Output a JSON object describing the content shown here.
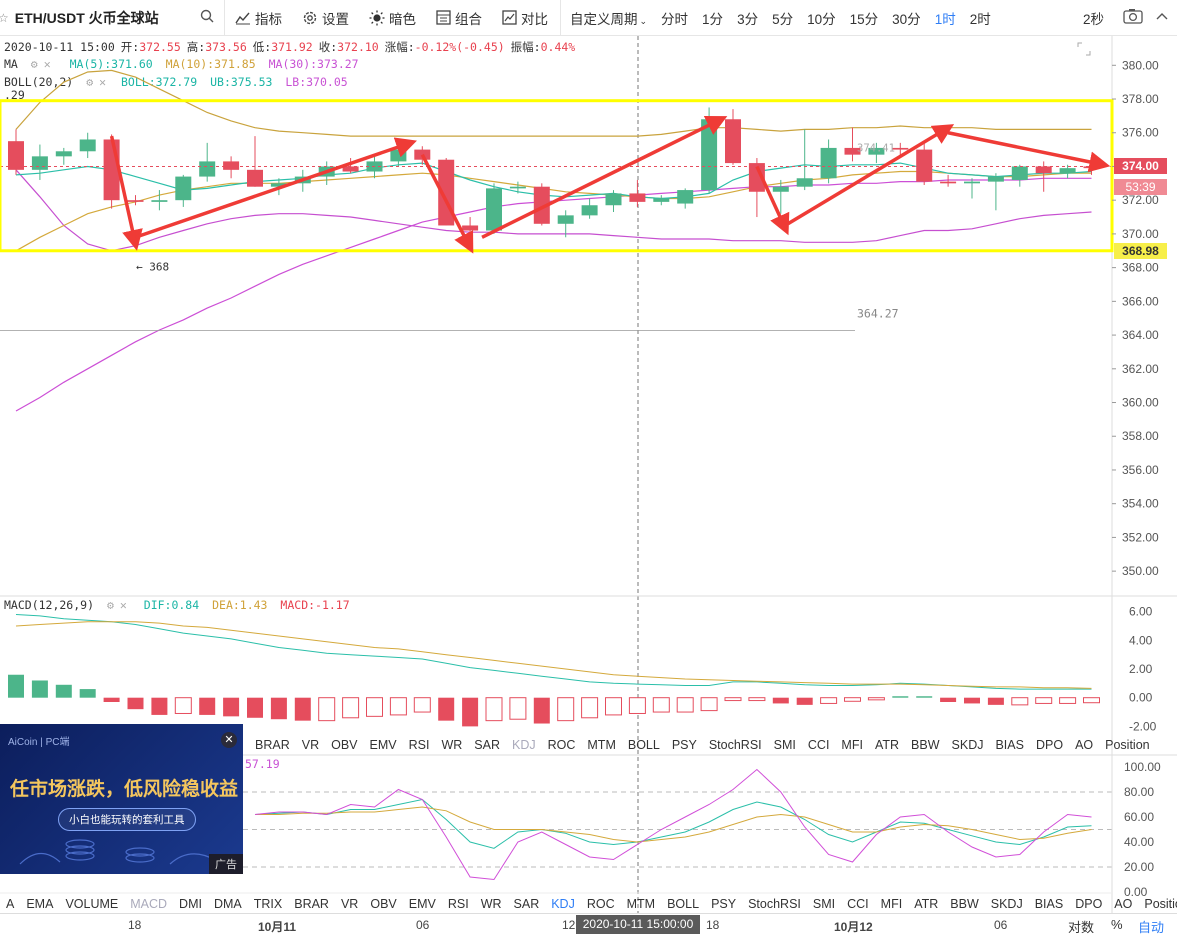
{
  "toolbar": {
    "symbol": "ETH/USDT 火币全球站",
    "buttons": [
      {
        "label": "指标",
        "icon": "indicator-icon"
      },
      {
        "label": "设置",
        "icon": "gear-icon"
      },
      {
        "label": "暗色",
        "icon": "sun-icon"
      },
      {
        "label": "组合",
        "icon": "combo-icon"
      },
      {
        "label": "对比",
        "icon": "compare-icon"
      }
    ],
    "custom_period": "自定义周期",
    "periods": [
      "分时",
      "1分",
      "3分",
      "5分",
      "10分",
      "15分",
      "30分",
      "1时",
      "2时"
    ],
    "active_period": "1时",
    "right_label": "2秒"
  },
  "info": {
    "line1": {
      "time": "2020-10-11 15:00",
      "open_label": "开:",
      "open": "372.55",
      "high_label": "高:",
      "high": "373.56",
      "low_label": "低:",
      "low": "371.92",
      "close_label": "收:",
      "close": "372.10",
      "change_label": "涨幅:",
      "change": "-0.12%(-0.45)",
      "amp_label": "振幅:",
      "amp": "0.44%"
    },
    "ma": {
      "name": "MA",
      "ma5": "MA(5):371.60",
      "ma10": "MA(10):371.85",
      "ma30": "MA(30):373.27"
    },
    "boll": {
      "name": "BOLL(20,2)",
      "boll": "BOLL:372.79",
      "ub": "UB:375.53",
      "lb": "LB:370.05",
      "extra": ".29"
    },
    "macd": {
      "name": "MACD(12,26,9)",
      "dif": "DIF:0.84",
      "dea": "DEA:1.43",
      "macd": "MACD:-1.17"
    },
    "kdj_j": "57.19"
  },
  "price_axis": {
    "ticks": [
      "380.00",
      "378.00",
      "376.00",
      "374.00",
      "372.00",
      "370.00",
      "368.00",
      "366.00",
      "364.00",
      "362.00",
      "360.00",
      "358.00",
      "356.00",
      "354.00",
      "352.00",
      "350.00"
    ],
    "current_price": "374.00",
    "countdown": "53:39",
    "yellow_label": "368.98"
  },
  "annotations": {
    "low_marker": "← 368",
    "hline_label": "364.27",
    "faint_label": "374.41"
  },
  "macd_axis": {
    "ticks": [
      "6.00",
      "4.00",
      "2.00",
      "0.00",
      "-2.00"
    ]
  },
  "kdj_axis": {
    "ticks": [
      "100.00",
      "80.00",
      "60.00",
      "40.00",
      "20.00",
      "0.00"
    ]
  },
  "indicator_tabs_1": [
    "BRAR",
    "VR",
    "OBV",
    "EMV",
    "RSI",
    "WR",
    "SAR",
    "KDJ",
    "ROC",
    "MTM",
    "BOLL",
    "PSY",
    "StochRSI",
    "SMI",
    "CCI",
    "MFI",
    "ATR",
    "BBW",
    "SKDJ",
    "BIAS",
    "DPO",
    "AO",
    "Position"
  ],
  "indicator_tabs_2": [
    "A",
    "EMA",
    "VOLUME",
    "MACD",
    "DMI",
    "DMA",
    "TRIX",
    "BRAR",
    "VR",
    "OBV",
    "EMV",
    "RSI",
    "WR",
    "SAR",
    "KDJ",
    "ROC",
    "MTM",
    "BOLL",
    "PSY",
    "StochRSI",
    "SMI",
    "CCI",
    "MFI",
    "ATR",
    "BBW",
    "SKDJ",
    "BIAS",
    "DPO",
    "AO",
    "Position"
  ],
  "time_axis": {
    "labels": [
      "18",
      "10月11",
      "06",
      "12",
      "18",
      "10月12",
      "06"
    ],
    "crosshair": "2020-10-11 15:00:00"
  },
  "bottom_right": {
    "log": "对数",
    "pct": "%",
    "auto": "自动"
  },
  "ad": {
    "brand": "AiCoin | PC端",
    "headline": "任市场涨跌，低风险稳收益",
    "sub": "小白也能玩转的套利工具",
    "tag": "广告",
    "close": "✕"
  },
  "colors": {
    "up": "#4cb58a",
    "down": "#e54d5d",
    "ma5": "#2bbfa9",
    "ma10": "#d4a93c",
    "ma30": "#cc4fd6",
    "box": "#ffff00",
    "arrow": "#ef3b36",
    "accent": "#2f7ef5"
  },
  "chart_data": [
    {
      "type": "candlestick",
      "title": "ETH/USDT 1h",
      "ylim": [
        349,
        381.5
      ],
      "candles": [
        {
          "o": 375.5,
          "h": 376.2,
          "l": 373.5,
          "c": 373.8
        },
        {
          "o": 373.8,
          "h": 375.3,
          "l": 373.2,
          "c": 374.6
        },
        {
          "o": 374.6,
          "h": 375.1,
          "l": 374.1,
          "c": 374.9
        },
        {
          "o": 374.9,
          "h": 376.0,
          "l": 374.5,
          "c": 375.6
        },
        {
          "o": 375.6,
          "h": 375.9,
          "l": 371.5,
          "c": 372.0
        },
        {
          "o": 372.0,
          "h": 372.3,
          "l": 371.7,
          "c": 371.9
        },
        {
          "o": 371.9,
          "h": 372.6,
          "l": 371.4,
          "c": 372.0
        },
        {
          "o": 372.0,
          "h": 373.5,
          "l": 371.6,
          "c": 373.4
        },
        {
          "o": 373.4,
          "h": 375.4,
          "l": 373.1,
          "c": 374.3
        },
        {
          "o": 374.3,
          "h": 374.6,
          "l": 373.3,
          "c": 373.8
        },
        {
          "o": 373.8,
          "h": 375.8,
          "l": 372.8,
          "c": 372.8
        },
        {
          "o": 372.8,
          "h": 373.3,
          "l": 372.3,
          "c": 373.0
        },
        {
          "o": 373.0,
          "h": 373.8,
          "l": 372.5,
          "c": 373.4
        },
        {
          "o": 373.4,
          "h": 374.3,
          "l": 372.9,
          "c": 374.0
        },
        {
          "o": 374.0,
          "h": 374.5,
          "l": 373.6,
          "c": 373.7
        },
        {
          "o": 373.7,
          "h": 374.6,
          "l": 373.3,
          "c": 374.3
        },
        {
          "o": 374.3,
          "h": 375.2,
          "l": 374.0,
          "c": 375.0
        },
        {
          "o": 375.0,
          "h": 375.2,
          "l": 374.1,
          "c": 374.4
        },
        {
          "o": 374.4,
          "h": 374.5,
          "l": 370.5,
          "c": 370.5
        },
        {
          "o": 370.5,
          "h": 371.0,
          "l": 369.9,
          "c": 370.2
        },
        {
          "o": 370.2,
          "h": 373.0,
          "l": 370.0,
          "c": 372.7
        },
        {
          "o": 372.7,
          "h": 373.1,
          "l": 372.4,
          "c": 372.8
        },
        {
          "o": 372.8,
          "h": 373.0,
          "l": 370.5,
          "c": 370.6
        },
        {
          "o": 370.6,
          "h": 371.4,
          "l": 369.8,
          "c": 371.1
        },
        {
          "o": 371.1,
          "h": 372.1,
          "l": 370.9,
          "c": 371.7
        },
        {
          "o": 371.7,
          "h": 372.6,
          "l": 371.3,
          "c": 372.4
        },
        {
          "o": 372.4,
          "h": 373.2,
          "l": 371.6,
          "c": 371.9
        },
        {
          "o": 371.9,
          "h": 372.3,
          "l": 371.7,
          "c": 372.1
        },
        {
          "o": 371.8,
          "h": 372.7,
          "l": 371.5,
          "c": 372.6
        },
        {
          "o": 372.6,
          "h": 377.5,
          "l": 372.4,
          "c": 376.8
        },
        {
          "o": 376.8,
          "h": 377.4,
          "l": 374.1,
          "c": 374.2
        },
        {
          "o": 374.2,
          "h": 374.5,
          "l": 371.0,
          "c": 372.5
        },
        {
          "o": 372.5,
          "h": 373.2,
          "l": 371.2,
          "c": 372.8
        },
        {
          "o": 372.8,
          "h": 376.2,
          "l": 372.6,
          "c": 373.3
        },
        {
          "o": 373.3,
          "h": 375.6,
          "l": 373.0,
          "c": 375.1
        },
        {
          "o": 375.1,
          "h": 376.3,
          "l": 374.3,
          "c": 374.7
        },
        {
          "o": 374.7,
          "h": 375.4,
          "l": 374.2,
          "c": 375.1
        },
        {
          "o": 375.1,
          "h": 375.4,
          "l": 374.6,
          "c": 375.0
        },
        {
          "o": 375.0,
          "h": 375.5,
          "l": 372.9,
          "c": 373.1
        },
        {
          "o": 373.1,
          "h": 373.5,
          "l": 372.8,
          "c": 373.0
        },
        {
          "o": 373.0,
          "h": 373.3,
          "l": 372.1,
          "c": 373.1
        },
        {
          "o": 373.1,
          "h": 373.6,
          "l": 371.4,
          "c": 373.4
        },
        {
          "o": 373.2,
          "h": 374.1,
          "l": 372.8,
          "c": 374.0
        },
        {
          "o": 374.0,
          "h": 374.3,
          "l": 372.5,
          "c": 373.6
        },
        {
          "o": 373.6,
          "h": 374.1,
          "l": 373.3,
          "c": 373.9
        },
        {
          "o": 374.0,
          "h": 374.3,
          "l": 373.5,
          "c": 373.9
        }
      ],
      "ma5": [
        373.5,
        373.6,
        373.8,
        374.0,
        373.8,
        373.4,
        373.0,
        372.6,
        372.7,
        372.9,
        373.1,
        373.2,
        373.3,
        373.5,
        373.6,
        373.9,
        374.1,
        374.2,
        373.7,
        373.2,
        372.8,
        372.5,
        372.3,
        372.2,
        372.3,
        372.4,
        372.2,
        372.1,
        372.2,
        372.4,
        373.2,
        373.7,
        373.9,
        374.1,
        374.0,
        374.1,
        374.1,
        374.2,
        373.9,
        373.6,
        373.5,
        373.4,
        373.5,
        373.6,
        373.6,
        373.7
      ],
      "ma10": [
        369.0,
        369.8,
        370.5,
        371.2,
        371.6,
        371.9,
        372.3,
        372.6,
        372.8,
        373.0,
        373.0,
        373.0,
        373.1,
        373.2,
        373.3,
        373.4,
        373.5,
        373.6,
        373.5,
        373.3,
        373.1,
        372.9,
        372.7,
        372.5,
        372.4,
        372.3,
        372.2,
        372.1,
        372.1,
        372.2,
        372.5,
        372.8,
        373.0,
        373.2,
        373.3,
        373.5,
        373.6,
        373.7,
        373.7,
        373.6,
        373.5,
        373.4,
        373.4,
        373.5,
        373.6,
        373.6
      ],
      "ma30": [
        359.5,
        360.3,
        361.2,
        362.0,
        362.8,
        363.6,
        364.3,
        364.9,
        365.6,
        366.2,
        366.9,
        367.6,
        368.2,
        368.7,
        369.2,
        369.7,
        370.2,
        370.7,
        371.0,
        371.3,
        371.6,
        371.8,
        371.9,
        372.0,
        372.1,
        372.2,
        372.3,
        372.4,
        372.5,
        372.6,
        372.7,
        372.8,
        372.8,
        372.9,
        372.9,
        373.0,
        373.0,
        373.1,
        373.1,
        373.2,
        373.2,
        373.2,
        373.2,
        373.3,
        373.3,
        373.3
      ],
      "ub": [
        376.2,
        377.8,
        379.0,
        379.6,
        379.7,
        379.3,
        378.6,
        377.9,
        377.2,
        376.7,
        376.3,
        376.1,
        376.0,
        375.9,
        375.8,
        375.8,
        375.8,
        375.8,
        375.8,
        375.8,
        375.8,
        375.8,
        375.8,
        375.8,
        375.8,
        375.8,
        375.8,
        375.9,
        376.1,
        376.3,
        376.3,
        376.2,
        376.1,
        376.2,
        376.2,
        376.3,
        376.3,
        376.4,
        376.3,
        376.3,
        376.3,
        376.2,
        376.2,
        376.2,
        376.2,
        376.2
      ],
      "lb": [
        373.8,
        372.2,
        370.5,
        369.4,
        369.0,
        369.3,
        369.8,
        370.2,
        370.6,
        370.9,
        371.1,
        371.2,
        371.2,
        371.1,
        371.0,
        370.8,
        370.6,
        370.4,
        370.2,
        370.1,
        370.1,
        370.0,
        370.0,
        370.0,
        370.0,
        369.9,
        369.8,
        369.7,
        369.7,
        369.7,
        369.6,
        369.6,
        369.6,
        369.5,
        369.5,
        369.5,
        369.6,
        369.9,
        370.2,
        370.2,
        370.3,
        370.6,
        370.9,
        371.1,
        371.2,
        371.3
      ]
    },
    {
      "type": "bar",
      "title": "MACD(12,26,9)",
      "ylim": [
        -2.6,
        6.6
      ],
      "dif": [
        5.8,
        5.7,
        5.5,
        5.4,
        5.3,
        5.1,
        4.8,
        4.5,
        4.3,
        4.1,
        3.8,
        3.5,
        3.3,
        3.1,
        3.0,
        2.9,
        2.8,
        2.7,
        2.4,
        2.1,
        1.9,
        1.7,
        1.5,
        1.3,
        1.1,
        1.0,
        0.95,
        0.9,
        0.85,
        0.85,
        1.1,
        1.1,
        1.0,
        0.9,
        0.85,
        0.85,
        0.9,
        1.0,
        0.95,
        0.85,
        0.75,
        0.65,
        0.6,
        0.6,
        0.6,
        0.6
      ],
      "dea": [
        5.0,
        5.1,
        5.2,
        5.3,
        5.3,
        5.3,
        5.2,
        5.0,
        4.9,
        4.7,
        4.5,
        4.3,
        4.1,
        3.9,
        3.7,
        3.5,
        3.4,
        3.2,
        3.0,
        2.8,
        2.6,
        2.4,
        2.2,
        2.0,
        1.8,
        1.6,
        1.5,
        1.4,
        1.3,
        1.25,
        1.2,
        1.15,
        1.1,
        1.05,
        1.0,
        0.95,
        0.95,
        0.95,
        0.9,
        0.85,
        0.8,
        0.75,
        0.75,
        0.7,
        0.7,
        0.65
      ],
      "hist": [
        1.6,
        1.2,
        0.9,
        0.6,
        -0.3,
        -0.8,
        -1.2,
        -1.1,
        -1.2,
        -1.3,
        -1.4,
        -1.5,
        -1.6,
        -1.6,
        -1.4,
        -1.3,
        -1.2,
        -1.0,
        -1.6,
        -2.0,
        -1.6,
        -1.5,
        -1.8,
        -1.6,
        -1.4,
        -1.2,
        -1.1,
        -1.0,
        -1.0,
        -0.9,
        -0.2,
        -0.2,
        -0.4,
        -0.5,
        -0.4,
        -0.25,
        -0.15,
        0.1,
        0.1,
        -0.3,
        -0.4,
        -0.5,
        -0.5,
        -0.4,
        -0.4,
        -0.35
      ]
    },
    {
      "type": "line",
      "title": "KDJ",
      "ylim": [
        0,
        108
      ],
      "k": [
        null,
        null,
        null,
        null,
        null,
        null,
        null,
        null,
        null,
        null,
        62,
        63,
        64,
        62,
        66,
        66,
        70,
        74,
        58,
        40,
        35,
        48,
        50,
        47,
        40,
        38,
        40,
        44,
        48,
        56,
        66,
        72,
        68,
        58,
        46,
        40,
        48,
        56,
        55,
        50,
        45,
        40,
        38,
        44,
        52,
        53
      ],
      "d": [
        null,
        null,
        null,
        null,
        null,
        null,
        null,
        null,
        null,
        null,
        62,
        62,
        63,
        63,
        64,
        64,
        66,
        68,
        65,
        56,
        50,
        50,
        50,
        48,
        46,
        42,
        40,
        42,
        44,
        48,
        54,
        60,
        62,
        60,
        54,
        48,
        48,
        52,
        54,
        53,
        50,
        46,
        42,
        43,
        47,
        50
      ],
      "j": [
        null,
        null,
        null,
        null,
        null,
        null,
        null,
        null,
        null,
        null,
        62,
        64,
        64,
        62,
        70,
        68,
        82,
        74,
        44,
        12,
        10,
        40,
        48,
        38,
        28,
        26,
        38,
        50,
        60,
        70,
        82,
        98,
        80,
        52,
        30,
        24,
        46,
        60,
        62,
        48,
        36,
        28,
        30,
        48,
        62,
        60
      ]
    }
  ]
}
